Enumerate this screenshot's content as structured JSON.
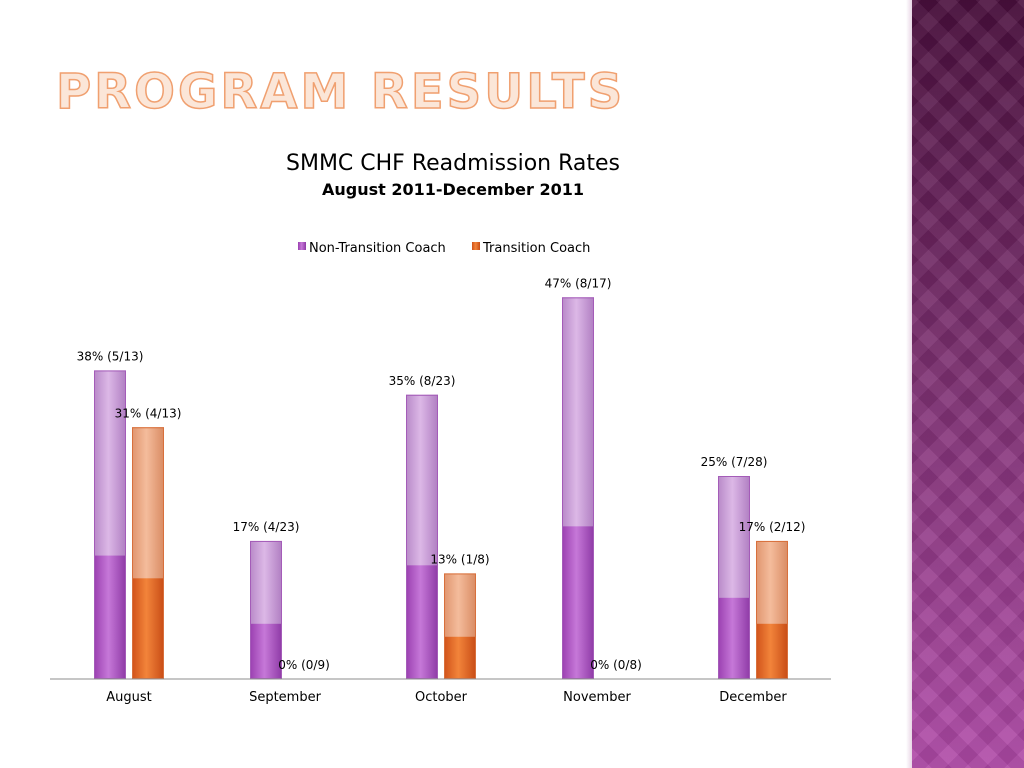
{
  "slide": {
    "title": "Program Results"
  },
  "chart_data": {
    "type": "bar",
    "title": "SMMC CHF Readmission Rates",
    "subtitle": "August 2011-December 2011",
    "xlabel": "",
    "ylabel": "",
    "ylim": [
      0,
      50
    ],
    "grid": false,
    "legend_position": "top",
    "categories": [
      "August",
      "September",
      "October",
      "November",
      "December"
    ],
    "series": [
      {
        "name": "Non-Transition Coach",
        "color": "#b45cc8",
        "values": [
          38,
          17,
          35,
          47,
          25
        ],
        "labels": [
          "38% (5/13)",
          "17% (4/23)",
          "35% (8/23)",
          "47% (8/17)",
          "25% (7/28)"
        ]
      },
      {
        "name": "Transition Coach",
        "color": "#e8692a",
        "values": [
          31,
          0,
          13,
          0,
          17
        ],
        "labels": [
          "31% (4/13)",
          "0% (0/9)",
          "13% (1/8)",
          "0% (0/8)",
          "17% (2/12)"
        ]
      }
    ]
  }
}
